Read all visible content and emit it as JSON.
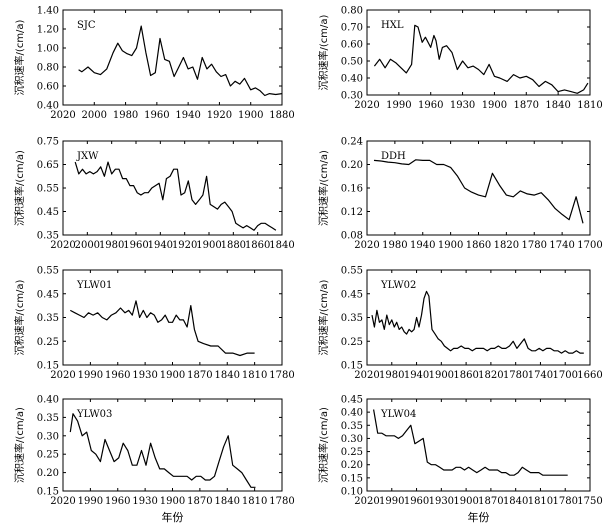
{
  "chart_data": [
    {
      "type": "line",
      "label": "SJC",
      "ylabel": "沉积速率/(cm/a)",
      "xlabel": "",
      "xlim": [
        2020,
        1880
      ],
      "ylim": [
        0.4,
        1.4
      ],
      "xticks": [
        2020,
        2000,
        1980,
        1960,
        1940,
        1920,
        1900,
        1880
      ],
      "yticks": [
        "0.40",
        "0.60",
        "0.80",
        "1.00",
        "1.20",
        "1.40"
      ],
      "x": [
        2010,
        2008,
        2004,
        2000,
        1996,
        1992,
        1988,
        1985,
        1982,
        1979,
        1976,
        1973,
        1970,
        1967,
        1964,
        1961,
        1958,
        1955,
        1952,
        1949,
        1946,
        1943,
        1940,
        1937,
        1934,
        1931,
        1928,
        1925,
        1922,
        1919,
        1916,
        1913,
        1910,
        1907,
        1904,
        1900,
        1897,
        1894,
        1891,
        1888,
        1884,
        1880
      ],
      "y": [
        0.77,
        0.75,
        0.8,
        0.74,
        0.72,
        0.78,
        0.95,
        1.05,
        0.97,
        0.94,
        0.92,
        1.0,
        1.23,
        0.95,
        0.71,
        0.74,
        1.1,
        0.88,
        0.86,
        0.7,
        0.8,
        0.9,
        0.78,
        0.8,
        0.67,
        0.9,
        0.78,
        0.83,
        0.75,
        0.7,
        0.72,
        0.6,
        0.65,
        0.62,
        0.68,
        0.56,
        0.58,
        0.55,
        0.5,
        0.52,
        0.51,
        0.52
      ]
    },
    {
      "type": "line",
      "label": "HXL",
      "ylabel": "沉积速率/(cm/a)",
      "xlabel": "",
      "xlim": [
        2020,
        1810
      ],
      "ylim": [
        0.3,
        0.8
      ],
      "xticks": [
        2020,
        1990,
        1960,
        1930,
        1900,
        1870,
        1840,
        1810
      ],
      "yticks": [
        "0.30",
        "0.40",
        "0.50",
        "0.60",
        "0.70",
        "0.80"
      ],
      "x": [
        2013,
        2008,
        2003,
        1998,
        1993,
        1988,
        1983,
        1978,
        1975,
        1972,
        1968,
        1965,
        1960,
        1957,
        1955,
        1952,
        1949,
        1945,
        1940,
        1935,
        1930,
        1925,
        1920,
        1915,
        1910,
        1905,
        1900,
        1895,
        1888,
        1882,
        1876,
        1870,
        1864,
        1858,
        1852,
        1846,
        1840,
        1834,
        1828,
        1822,
        1816,
        1812
      ],
      "y": [
        0.47,
        0.51,
        0.46,
        0.51,
        0.49,
        0.46,
        0.43,
        0.48,
        0.71,
        0.7,
        0.61,
        0.64,
        0.58,
        0.65,
        0.62,
        0.51,
        0.58,
        0.59,
        0.55,
        0.45,
        0.5,
        0.46,
        0.47,
        0.45,
        0.42,
        0.48,
        0.41,
        0.4,
        0.38,
        0.42,
        0.4,
        0.41,
        0.39,
        0.35,
        0.38,
        0.36,
        0.32,
        0.33,
        0.32,
        0.31,
        0.33,
        0.37
      ]
    },
    {
      "type": "line",
      "label": "JXW",
      "ylabel": "沉积速率/(cm/a)",
      "xlabel": "",
      "xlim": [
        2020,
        1840
      ],
      "ylim": [
        0.35,
        0.75
      ],
      "xticks": [
        2020,
        2000,
        1980,
        1960,
        1940,
        1920,
        1900,
        1880,
        1860,
        1840
      ],
      "yticks": [
        "0.35",
        "0.45",
        "0.55",
        "0.65",
        "0.75"
      ],
      "x": [
        2010,
        2007,
        2004,
        2001,
        1998,
        1995,
        1992,
        1989,
        1986,
        1983,
        1980,
        1977,
        1974,
        1971,
        1968,
        1965,
        1962,
        1959,
        1956,
        1953,
        1950,
        1947,
        1944,
        1941,
        1938,
        1935,
        1932,
        1929,
        1926,
        1923,
        1920,
        1917,
        1914,
        1911,
        1908,
        1905,
        1902,
        1899,
        1896,
        1893,
        1890,
        1887,
        1884,
        1881,
        1878,
        1875,
        1872,
        1869,
        1866,
        1863,
        1860,
        1857,
        1854,
        1851,
        1848,
        1845
      ],
      "y": [
        0.66,
        0.61,
        0.63,
        0.61,
        0.62,
        0.61,
        0.62,
        0.64,
        0.6,
        0.66,
        0.61,
        0.63,
        0.63,
        0.59,
        0.59,
        0.56,
        0.56,
        0.53,
        0.52,
        0.53,
        0.53,
        0.55,
        0.56,
        0.57,
        0.5,
        0.59,
        0.6,
        0.63,
        0.63,
        0.52,
        0.53,
        0.58,
        0.5,
        0.48,
        0.5,
        0.52,
        0.6,
        0.48,
        0.47,
        0.46,
        0.48,
        0.49,
        0.47,
        0.45,
        0.4,
        0.39,
        0.38,
        0.39,
        0.38,
        0.37,
        0.39,
        0.4,
        0.4,
        0.39,
        0.38,
        0.37
      ]
    },
    {
      "type": "line",
      "label": "DDH",
      "ylabel": "沉积速率/(cm/a)",
      "xlabel": "",
      "xlim": [
        2020,
        1700
      ],
      "ylim": [
        0.08,
        0.24
      ],
      "xticks": [
        2020,
        1980,
        1940,
        1900,
        1860,
        1820,
        1780,
        1740,
        1700
      ],
      "yticks": [
        "0.08",
        "0.12",
        "0.16",
        "0.20",
        "0.24"
      ],
      "x": [
        2010,
        2000,
        1990,
        1980,
        1970,
        1960,
        1950,
        1940,
        1930,
        1920,
        1910,
        1900,
        1890,
        1880,
        1870,
        1860,
        1850,
        1840,
        1830,
        1820,
        1810,
        1800,
        1790,
        1780,
        1770,
        1760,
        1750,
        1740,
        1730,
        1720,
        1710
      ],
      "y": [
        0.207,
        0.206,
        0.204,
        0.203,
        0.201,
        0.2,
        0.208,
        0.207,
        0.207,
        0.2,
        0.2,
        0.195,
        0.18,
        0.16,
        0.153,
        0.148,
        0.145,
        0.185,
        0.165,
        0.148,
        0.145,
        0.155,
        0.15,
        0.148,
        0.152,
        0.14,
        0.125,
        0.115,
        0.106,
        0.145,
        0.1
      ]
    },
    {
      "type": "line",
      "label": "YLW01",
      "ylabel": "沉积速率/(cm/a)",
      "xlabel": "",
      "xlim": [
        2020,
        1780
      ],
      "ylim": [
        0.15,
        0.55
      ],
      "xticks": [
        2020,
        1990,
        1960,
        1930,
        1900,
        1870,
        1840,
        1810,
        1780
      ],
      "yticks": [
        "0.15",
        "0.25",
        "0.35",
        "0.45",
        "0.55"
      ],
      "x": [
        2012,
        2007,
        2002,
        1997,
        1992,
        1987,
        1982,
        1977,
        1972,
        1967,
        1962,
        1957,
        1952,
        1948,
        1944,
        1940,
        1936,
        1932,
        1928,
        1924,
        1920,
        1916,
        1912,
        1908,
        1904,
        1900,
        1896,
        1892,
        1888,
        1884,
        1880,
        1876,
        1872,
        1866,
        1858,
        1850,
        1842,
        1834,
        1826,
        1818,
        1810
      ],
      "y": [
        0.38,
        0.37,
        0.36,
        0.35,
        0.37,
        0.36,
        0.37,
        0.35,
        0.34,
        0.36,
        0.37,
        0.39,
        0.37,
        0.38,
        0.36,
        0.42,
        0.35,
        0.38,
        0.35,
        0.37,
        0.36,
        0.33,
        0.34,
        0.36,
        0.33,
        0.33,
        0.36,
        0.34,
        0.34,
        0.31,
        0.4,
        0.3,
        0.25,
        0.24,
        0.23,
        0.23,
        0.2,
        0.2,
        0.19,
        0.2,
        0.2
      ]
    },
    {
      "type": "line",
      "label": "YLW02",
      "ylabel": "沉积速率/(cm/a)",
      "xlabel": "",
      "xlim": [
        2020,
        1660
      ],
      "ylim": [
        0.15,
        0.55
      ],
      "xticks": [
        2020,
        1980,
        1940,
        1900,
        1860,
        1820,
        1780,
        1740,
        1700,
        1660
      ],
      "yticks": [
        "0.15",
        "0.25",
        "0.35",
        "0.45",
        "0.55"
      ],
      "x": [
        2012,
        2008,
        2004,
        2000,
        1996,
        1992,
        1988,
        1984,
        1980,
        1976,
        1972,
        1968,
        1964,
        1960,
        1956,
        1952,
        1948,
        1944,
        1940,
        1936,
        1932,
        1928,
        1924,
        1920,
        1915,
        1910,
        1905,
        1900,
        1895,
        1890,
        1885,
        1880,
        1874,
        1868,
        1862,
        1856,
        1850,
        1844,
        1838,
        1832,
        1826,
        1820,
        1814,
        1808,
        1802,
        1796,
        1790,
        1784,
        1778,
        1772,
        1766,
        1760,
        1754,
        1748,
        1742,
        1736,
        1730,
        1724,
        1718,
        1712,
        1706,
        1700,
        1694,
        1688,
        1682,
        1676,
        1670
      ],
      "y": [
        0.36,
        0.31,
        0.38,
        0.33,
        0.34,
        0.3,
        0.36,
        0.32,
        0.34,
        0.31,
        0.33,
        0.3,
        0.31,
        0.29,
        0.28,
        0.3,
        0.29,
        0.3,
        0.35,
        0.31,
        0.36,
        0.43,
        0.46,
        0.44,
        0.3,
        0.28,
        0.26,
        0.25,
        0.23,
        0.22,
        0.21,
        0.22,
        0.22,
        0.23,
        0.22,
        0.22,
        0.21,
        0.22,
        0.22,
        0.22,
        0.21,
        0.22,
        0.22,
        0.23,
        0.22,
        0.22,
        0.23,
        0.25,
        0.22,
        0.24,
        0.26,
        0.22,
        0.21,
        0.21,
        0.22,
        0.21,
        0.22,
        0.22,
        0.21,
        0.21,
        0.2,
        0.21,
        0.2,
        0.2,
        0.21,
        0.2,
        0.2
      ]
    },
    {
      "type": "line",
      "label": "YLW03",
      "ylabel": "沉积速率/(cm/a)",
      "xlabel": "年份",
      "xlim": [
        2020,
        1780
      ],
      "ylim": [
        0.15,
        0.4
      ],
      "xticks": [
        2020,
        1990,
        1960,
        1930,
        1900,
        1870,
        1840,
        1810,
        1780
      ],
      "yticks": [
        "0.15",
        "0.20",
        "0.25",
        "0.30",
        "0.35",
        "0.40"
      ],
      "x": [
        2012,
        2009,
        2004,
        1999,
        1994,
        1989,
        1984,
        1979,
        1974,
        1969,
        1964,
        1959,
        1954,
        1949,
        1944,
        1939,
        1934,
        1929,
        1924,
        1919,
        1914,
        1909,
        1904,
        1899,
        1894,
        1889,
        1884,
        1879,
        1874,
        1869,
        1864,
        1859,
        1854,
        1849,
        1844,
        1839,
        1834,
        1829,
        1824,
        1819,
        1814,
        1809
      ],
      "y": [
        0.31,
        0.36,
        0.34,
        0.3,
        0.31,
        0.26,
        0.25,
        0.23,
        0.29,
        0.26,
        0.23,
        0.24,
        0.28,
        0.26,
        0.22,
        0.22,
        0.26,
        0.22,
        0.28,
        0.24,
        0.21,
        0.21,
        0.2,
        0.19,
        0.19,
        0.19,
        0.19,
        0.18,
        0.19,
        0.19,
        0.18,
        0.18,
        0.19,
        0.23,
        0.27,
        0.3,
        0.22,
        0.21,
        0.2,
        0.18,
        0.16,
        0.16
      ]
    },
    {
      "type": "line",
      "label": "YLW04",
      "ylabel": "沉积速率/(cm/a)",
      "xlabel": "年份",
      "xlim": [
        2020,
        1750
      ],
      "ylim": [
        0.1,
        0.45
      ],
      "xticks": [
        2020,
        1990,
        1960,
        1930,
        1900,
        1870,
        1840,
        1810,
        1780,
        1750
      ],
      "yticks": [
        "0.10",
        "0.15",
        "0.20",
        "0.25",
        "0.30",
        "0.35",
        "0.40",
        "0.45"
      ],
      "x": [
        2012,
        2007,
        2002,
        1997,
        1992,
        1987,
        1982,
        1977,
        1972,
        1967,
        1962,
        1957,
        1952,
        1947,
        1942,
        1937,
        1932,
        1927,
        1922,
        1917,
        1912,
        1907,
        1902,
        1897,
        1892,
        1887,
        1882,
        1877,
        1872,
        1867,
        1862,
        1857,
        1852,
        1847,
        1842,
        1837,
        1832,
        1827,
        1822,
        1817,
        1812,
        1807,
        1802,
        1797,
        1792,
        1787,
        1782,
        1777
      ],
      "y": [
        0.41,
        0.32,
        0.32,
        0.31,
        0.31,
        0.31,
        0.3,
        0.31,
        0.33,
        0.35,
        0.28,
        0.29,
        0.3,
        0.21,
        0.2,
        0.2,
        0.19,
        0.18,
        0.18,
        0.18,
        0.19,
        0.19,
        0.18,
        0.19,
        0.18,
        0.17,
        0.18,
        0.19,
        0.18,
        0.18,
        0.18,
        0.17,
        0.17,
        0.16,
        0.16,
        0.17,
        0.19,
        0.18,
        0.17,
        0.17,
        0.17,
        0.16,
        0.16,
        0.16,
        0.16,
        0.16,
        0.16,
        0.16
      ]
    }
  ]
}
